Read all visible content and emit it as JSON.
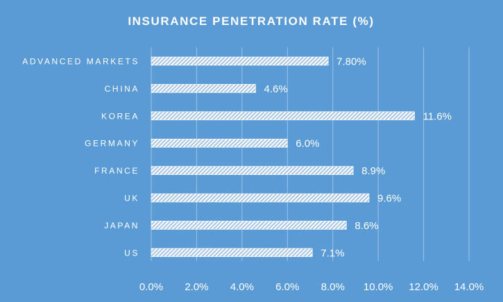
{
  "chart_data": {
    "type": "bar",
    "orientation": "horizontal",
    "title": "INSURANCE PENETRATION RATE (%)",
    "xlabel": "",
    "ylabel": "",
    "categories": [
      "ADVANCED MARKETS",
      "CHINA",
      "KOREA",
      "GERMANY",
      "FRANCE",
      "UK",
      "JAPAN",
      "US"
    ],
    "values": [
      7.8,
      4.6,
      11.6,
      6.0,
      8.9,
      9.6,
      8.6,
      7.1
    ],
    "data_labels": [
      "7.80%",
      "4.6%",
      "11.6%",
      "6.0%",
      "8.9%",
      "9.6%",
      "8.6%",
      "7.1%"
    ],
    "xlim": [
      0,
      14
    ],
    "x_ticks": [
      0,
      2,
      4,
      6,
      8,
      10,
      12,
      14
    ],
    "x_tick_labels": [
      "0.0%",
      "2.0%",
      "4.0%",
      "6.0%",
      "8.0%",
      "10.0%",
      "12.0%",
      "14.0%"
    ],
    "grid": true,
    "legend": "none",
    "colors": {
      "background": "#5b9bd5",
      "bar_fill": "#ffffff",
      "bar_hatch": "#9fbfdf",
      "gridline": "#9cc2e7",
      "text": "#ffffff"
    },
    "bar_pattern": "diagonal-hatch"
  }
}
